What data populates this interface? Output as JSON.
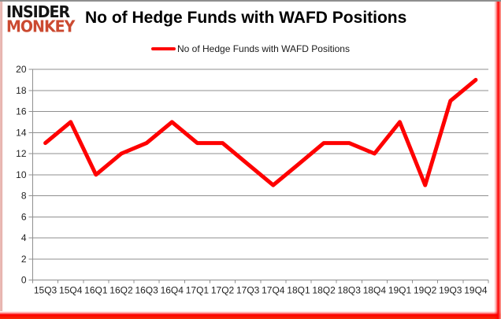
{
  "logo": {
    "line1": "INSIDER",
    "line2": "MONKEY"
  },
  "title": "No of Hedge Funds with WAFD Positions",
  "legend": {
    "label": "No of Hedge Funds with WAFD Positions"
  },
  "colors": {
    "line": "#fe0000",
    "grid": "#8f8f8f",
    "axis_text": "#1f1f1f",
    "logo_accent": "#cb4a31",
    "edge_red": "#fe0000"
  },
  "chart_data": {
    "type": "line",
    "title": "No of Hedge Funds with WAFD Positions",
    "categories": [
      "15Q3",
      "15Q4",
      "16Q1",
      "16Q2",
      "16Q3",
      "16Q4",
      "17Q1",
      "17Q2",
      "17Q3",
      "17Q4",
      "18Q1",
      "18Q2",
      "18Q3",
      "18Q4",
      "19Q1",
      "19Q2",
      "19Q3",
      "19Q4"
    ],
    "series": [
      {
        "name": "No of Hedge Funds with WAFD Positions",
        "color": "#fe0000",
        "values": [
          13,
          15,
          10,
          12,
          13,
          15,
          13,
          13,
          11,
          9,
          11,
          13,
          13,
          12,
          15,
          9,
          17,
          19
        ]
      }
    ],
    "xlabel": "",
    "ylabel": "",
    "ylim": [
      0,
      20
    ],
    "ytick_step": 2,
    "grid": true,
    "legend_position": "top-center"
  }
}
